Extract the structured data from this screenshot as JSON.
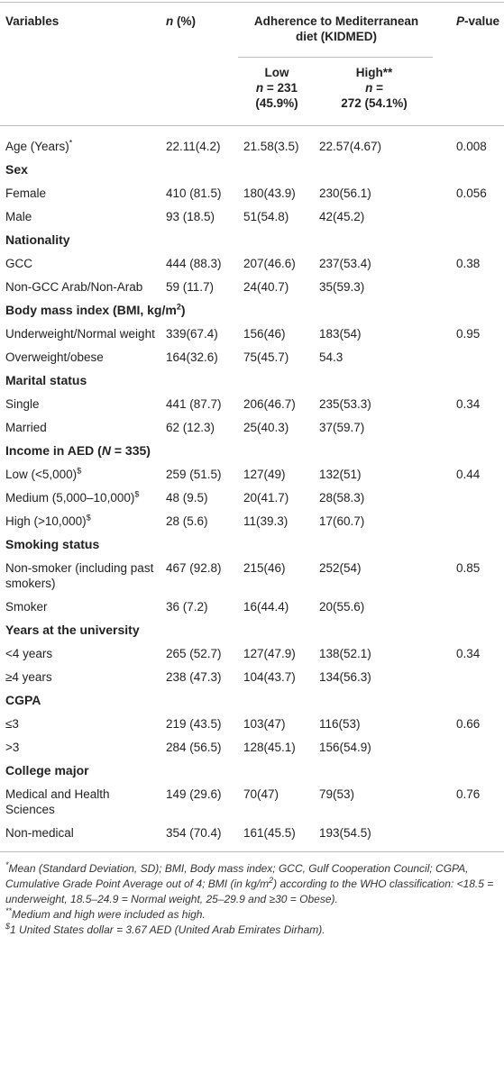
{
  "table": {
    "header": {
      "variables": "Variables",
      "n": [
        {
          "t": "n",
          "s": "i"
        },
        {
          "t": " (%)"
        }
      ],
      "group": "Adherence to Mediterranean diet (KIDMED)",
      "p": [
        {
          "t": "P",
          "s": "i"
        },
        {
          "t": "-value"
        }
      ],
      "subheaders": [
        {
          "lines": [
            "Low",
            [
              {
                "t": "n",
                "s": "i"
              },
              {
                "t": " = 231"
              }
            ],
            "(45.9%)"
          ]
        },
        {
          "lines": [
            "High**",
            [
              {
                "t": "n",
                "s": "i"
              },
              {
                "t": " ="
              }
            ],
            "272 (54.1%)"
          ]
        }
      ]
    },
    "rows": [
      {
        "label": [
          {
            "t": "Age (Years)"
          },
          {
            "t": "*",
            "s": "sup"
          }
        ],
        "values": [
          "22.11(4.2)",
          "21.58(3.5)",
          "22.57(4.67)",
          "0.008"
        ]
      },
      {
        "section": "Sex"
      },
      {
        "label": "Female",
        "values": [
          "410 (81.5)",
          "180(43.9)",
          "230(56.1)",
          "0.056"
        ]
      },
      {
        "label": "Male",
        "values": [
          "93 (18.5)",
          "51(54.8)",
          "42(45.2)",
          null
        ]
      },
      {
        "section": "Nationality"
      },
      {
        "label": "GCC",
        "values": [
          "444 (88.3)",
          "207(46.6)",
          "237(53.4)",
          "0.38"
        ]
      },
      {
        "label": "Non-GCC Arab/Non-Arab",
        "values": [
          "59 (11.7)",
          "24(40.7)",
          "35(59.3)",
          null
        ]
      },
      {
        "section": [
          {
            "t": "Body mass index (BMI, kg/m"
          },
          {
            "t": "2",
            "s": "sup"
          },
          {
            "t": ")"
          }
        ]
      },
      {
        "label": "Underweight/Normal weight",
        "values": [
          "339(67.4)",
          "156(46)",
          "183(54)",
          "0.95"
        ]
      },
      {
        "label": "Overweight/obese",
        "values": [
          "164(32.6)",
          "75(45.7)",
          "54.3",
          null
        ]
      },
      {
        "section": "Marital status"
      },
      {
        "label": "Single",
        "values": [
          "441 (87.7)",
          "206(46.7)",
          "235(53.3)",
          "0.34"
        ]
      },
      {
        "label": "Married",
        "values": [
          "62 (12.3)",
          "25(40.3)",
          "37(59.7)",
          null
        ]
      },
      {
        "section": [
          {
            "t": "Income in AED ("
          },
          {
            "t": "N",
            "s": "i"
          },
          {
            "t": " = 335)"
          }
        ]
      },
      {
        "label": [
          {
            "t": "Low (<5,000)"
          },
          {
            "t": "$",
            "s": "sup"
          }
        ],
        "values": [
          "259 (51.5)",
          "127(49)",
          "132(51)",
          "0.44"
        ]
      },
      {
        "label": [
          {
            "t": "Medium (5,000–10,000)"
          },
          {
            "t": "$",
            "s": "sup"
          }
        ],
        "values": [
          "48 (9.5)",
          "20(41.7)",
          "28(58.3)",
          null
        ]
      },
      {
        "label": [
          {
            "t": "High (>10,000)"
          },
          {
            "t": "$",
            "s": "sup"
          }
        ],
        "values": [
          "28 (5.6)",
          "11(39.3)",
          "17(60.7)",
          null
        ]
      },
      {
        "section": "Smoking status"
      },
      {
        "label": "Non-smoker (including past smokers)",
        "values": [
          "467 (92.8)",
          "215(46)",
          "252(54)",
          "0.85"
        ]
      },
      {
        "label": "Smoker",
        "values": [
          "36 (7.2)",
          "16(44.4)",
          "20(55.6)",
          null
        ]
      },
      {
        "section": "Years at the university"
      },
      {
        "label": "<4 years",
        "values": [
          "265 (52.7)",
          "127(47.9)",
          "138(52.1)",
          "0.34"
        ]
      },
      {
        "label": "≥4 years",
        "values": [
          "238 (47.3)",
          "104(43.7)",
          "134(56.3)",
          null
        ]
      },
      {
        "section": "CGPA"
      },
      {
        "label": "≤3",
        "values": [
          "219 (43.5)",
          "103(47)",
          "116(53)",
          "0.66"
        ]
      },
      {
        "label": ">3",
        "values": [
          "284 (56.5)",
          "128(45.1)",
          "156(54.9)",
          null
        ]
      },
      {
        "section": "College major"
      },
      {
        "label": "Medical and Health Sciences",
        "values": [
          "149 (29.6)",
          "70(47)",
          "79(53)",
          "0.76"
        ]
      },
      {
        "label": "Non-medical",
        "values": [
          "354 (70.4)",
          "161(45.5)",
          "193(54.5)",
          null
        ]
      }
    ],
    "footnotes": [
      [
        {
          "t": "*",
          "s": "sup"
        },
        {
          "t": "Mean (Standard Deviation, SD); BMI, Body mass index; GCC, Gulf Cooperation Council; CGPA, Cumulative Grade Point Average out of 4; BMI (in kg/m"
        },
        {
          "t": "2",
          "s": "sup"
        },
        {
          "t": ") according to the WHO classification: <18.5 = underweight, 18.5–24.9 = Normal weight, 25–29.9 and ≥30 = Obese)."
        }
      ],
      [
        {
          "t": "**",
          "s": "sup"
        },
        {
          "t": "Medium and high were included as high."
        }
      ],
      [
        {
          "t": "$",
          "s": "sup"
        },
        {
          "t": "1 United States dollar = 3.67 AED (United Arab Emirates Dirham)."
        }
      ]
    ]
  }
}
